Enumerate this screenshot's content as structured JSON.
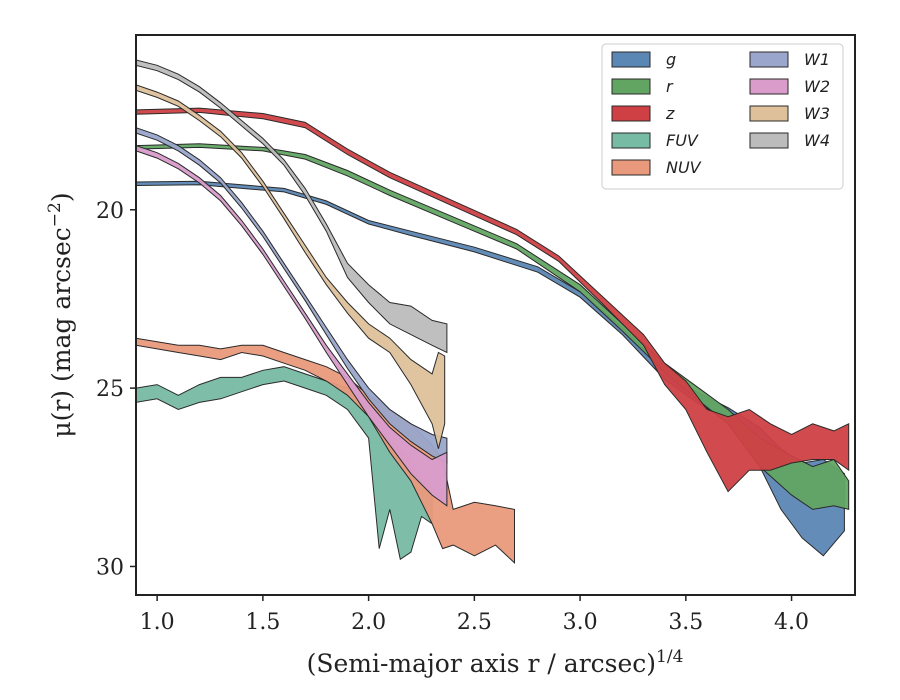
{
  "chart_data": {
    "type": "area",
    "xlabel": "(Semi-major axis r / arcsec)",
    "xlabel_sup": "1/4",
    "ylabel": "μ(r) (mag arcsec",
    "ylabel_sup": "−2",
    "ylabel_tail": ")",
    "xlim": [
      0.9,
      4.3
    ],
    "ylim": [
      30.8,
      15.1
    ],
    "y_inverted": true,
    "grid": false,
    "legend_position": "top-right",
    "legend_columns": 2,
    "x_ticks": [
      1.0,
      1.5,
      2.0,
      2.5,
      3.0,
      3.5,
      4.0
    ],
    "x_tick_labels": [
      "1.0",
      "1.5",
      "2.0",
      "2.5",
      "3.0",
      "3.5",
      "4.0"
    ],
    "y_ticks": [
      20,
      25,
      30
    ],
    "y_tick_labels": [
      "20",
      "25",
      "30"
    ],
    "series": [
      {
        "name": "g",
        "color": "#5b87b4",
        "points": [
          [
            0.9,
            19.22,
            19.32
          ],
          [
            1.2,
            19.2,
            19.3
          ],
          [
            1.6,
            19.4,
            19.5
          ],
          [
            1.8,
            19.75,
            19.85
          ],
          [
            2.0,
            20.3,
            20.4
          ],
          [
            2.2,
            20.6,
            20.72
          ],
          [
            2.5,
            21.05,
            21.18
          ],
          [
            2.8,
            21.6,
            21.75
          ],
          [
            3.0,
            22.3,
            22.45
          ],
          [
            3.2,
            23.3,
            23.5
          ],
          [
            3.4,
            24.5,
            24.75
          ],
          [
            3.55,
            25.1,
            25.4
          ],
          [
            3.7,
            25.55,
            25.9
          ],
          [
            3.85,
            26.1,
            27.2
          ],
          [
            3.95,
            26.7,
            28.4
          ],
          [
            4.05,
            27.1,
            29.2
          ],
          [
            4.15,
            27.0,
            29.7
          ],
          [
            4.25,
            27.4,
            29.0
          ]
        ]
      },
      {
        "name": "r",
        "color": "#62a563",
        "points": [
          [
            0.9,
            18.2,
            18.3
          ],
          [
            1.2,
            18.15,
            18.25
          ],
          [
            1.5,
            18.25,
            18.35
          ],
          [
            1.7,
            18.45,
            18.58
          ],
          [
            1.9,
            18.9,
            19.05
          ],
          [
            2.1,
            19.45,
            19.6
          ],
          [
            2.4,
            20.2,
            20.35
          ],
          [
            2.7,
            20.95,
            21.1
          ],
          [
            3.0,
            22.1,
            22.3
          ],
          [
            3.2,
            23.2,
            23.4
          ],
          [
            3.4,
            24.3,
            24.55
          ],
          [
            3.55,
            24.95,
            25.3
          ],
          [
            3.7,
            25.6,
            26.0
          ],
          [
            3.85,
            26.4,
            27.2
          ],
          [
            4.0,
            26.9,
            28.0
          ],
          [
            4.1,
            27.2,
            28.4
          ],
          [
            4.2,
            27.0,
            28.3
          ],
          [
            4.27,
            27.6,
            28.4
          ]
        ]
      },
      {
        "name": "z",
        "color": "#cf4044",
        "points": [
          [
            0.9,
            17.2,
            17.32
          ],
          [
            1.2,
            17.15,
            17.27
          ],
          [
            1.5,
            17.3,
            17.45
          ],
          [
            1.7,
            17.55,
            17.7
          ],
          [
            1.9,
            18.3,
            18.45
          ],
          [
            2.1,
            18.95,
            19.1
          ],
          [
            2.4,
            19.75,
            19.9
          ],
          [
            2.7,
            20.55,
            20.7
          ],
          [
            2.9,
            21.3,
            21.45
          ],
          [
            3.1,
            22.4,
            22.6
          ],
          [
            3.3,
            23.5,
            23.8
          ],
          [
            3.4,
            24.3,
            24.9
          ],
          [
            3.5,
            24.8,
            25.6
          ],
          [
            3.6,
            25.6,
            26.8
          ],
          [
            3.7,
            25.8,
            27.9
          ],
          [
            3.8,
            25.6,
            27.3
          ],
          [
            3.9,
            26.0,
            27.3
          ],
          [
            4.0,
            26.3,
            27.1
          ],
          [
            4.1,
            26.0,
            27.0
          ],
          [
            4.2,
            26.2,
            27.0
          ],
          [
            4.27,
            26.0,
            27.3
          ]
        ]
      },
      {
        "name": "FUV",
        "color": "#77bba4",
        "points": [
          [
            0.9,
            25.0,
            25.4
          ],
          [
            1.0,
            24.9,
            25.3
          ],
          [
            1.1,
            25.2,
            25.6
          ],
          [
            1.2,
            24.9,
            25.4
          ],
          [
            1.3,
            24.7,
            25.3
          ],
          [
            1.4,
            24.7,
            25.1
          ],
          [
            1.5,
            24.5,
            24.9
          ],
          [
            1.6,
            24.4,
            24.8
          ],
          [
            1.7,
            24.6,
            25.0
          ],
          [
            1.8,
            24.8,
            25.2
          ],
          [
            1.9,
            25.0,
            25.6
          ],
          [
            2.0,
            25.5,
            26.4
          ],
          [
            2.05,
            26.2,
            29.5
          ],
          [
            2.1,
            26.4,
            28.4
          ],
          [
            2.15,
            26.7,
            29.8
          ],
          [
            2.2,
            27.0,
            29.6
          ],
          [
            2.25,
            27.6,
            28.6
          ],
          [
            2.3,
            27.7,
            28.8
          ]
        ]
      },
      {
        "name": "NUV",
        "color": "#e99a7c",
        "points": [
          [
            0.9,
            23.6,
            23.8
          ],
          [
            1.0,
            23.7,
            23.9
          ],
          [
            1.1,
            23.8,
            24.0
          ],
          [
            1.2,
            23.8,
            24.1
          ],
          [
            1.3,
            23.9,
            24.2
          ],
          [
            1.4,
            23.8,
            24.0
          ],
          [
            1.5,
            23.8,
            24.1
          ],
          [
            1.6,
            24.0,
            24.3
          ],
          [
            1.7,
            24.2,
            24.5
          ],
          [
            1.8,
            24.4,
            24.8
          ],
          [
            1.9,
            24.7,
            25.2
          ],
          [
            2.0,
            25.2,
            25.8
          ],
          [
            2.1,
            25.6,
            26.8
          ],
          [
            2.2,
            26.0,
            27.6
          ],
          [
            2.3,
            26.6,
            28.8
          ],
          [
            2.35,
            27.0,
            29.5
          ],
          [
            2.4,
            28.4,
            29.4
          ],
          [
            2.5,
            28.2,
            29.7
          ],
          [
            2.6,
            28.3,
            29.4
          ],
          [
            2.69,
            28.4,
            29.9
          ]
        ]
      },
      {
        "name": "W1",
        "color": "#9aa6cb",
        "points": [
          [
            0.9,
            17.7,
            17.85
          ],
          [
            1.0,
            17.9,
            18.05
          ],
          [
            1.1,
            18.2,
            18.35
          ],
          [
            1.2,
            18.6,
            18.75
          ],
          [
            1.3,
            19.1,
            19.25
          ],
          [
            1.4,
            19.8,
            19.95
          ],
          [
            1.5,
            20.6,
            20.75
          ],
          [
            1.6,
            21.5,
            21.65
          ],
          [
            1.7,
            22.4,
            22.55
          ],
          [
            1.8,
            23.3,
            23.5
          ],
          [
            1.9,
            24.2,
            24.45
          ],
          [
            2.0,
            25.0,
            25.3
          ],
          [
            2.1,
            25.6,
            26.0
          ],
          [
            2.2,
            26.0,
            26.5
          ],
          [
            2.3,
            26.3,
            26.9
          ],
          [
            2.37,
            26.4,
            27.1
          ]
        ]
      },
      {
        "name": "W2",
        "color": "#d99ccb",
        "points": [
          [
            0.9,
            18.2,
            18.35
          ],
          [
            1.0,
            18.4,
            18.55
          ],
          [
            1.1,
            18.7,
            18.85
          ],
          [
            1.2,
            19.1,
            19.25
          ],
          [
            1.3,
            19.6,
            19.75
          ],
          [
            1.4,
            20.3,
            20.45
          ],
          [
            1.5,
            21.1,
            21.25
          ],
          [
            1.6,
            22.0,
            22.15
          ],
          [
            1.7,
            22.9,
            23.05
          ],
          [
            1.8,
            23.8,
            24.0
          ],
          [
            1.9,
            24.6,
            24.9
          ],
          [
            2.0,
            25.4,
            25.8
          ],
          [
            2.1,
            26.1,
            26.6
          ],
          [
            2.2,
            26.6,
            27.4
          ],
          [
            2.3,
            27.0,
            28.0
          ],
          [
            2.37,
            26.8,
            28.3
          ]
        ]
      },
      {
        "name": "W3",
        "color": "#dec19b",
        "points": [
          [
            0.9,
            16.5,
            16.65
          ],
          [
            1.0,
            16.7,
            16.85
          ],
          [
            1.1,
            16.95,
            17.1
          ],
          [
            1.2,
            17.35,
            17.5
          ],
          [
            1.3,
            17.8,
            17.95
          ],
          [
            1.4,
            18.4,
            18.55
          ],
          [
            1.5,
            19.2,
            19.35
          ],
          [
            1.6,
            20.1,
            20.25
          ],
          [
            1.7,
            21.0,
            21.2
          ],
          [
            1.8,
            21.9,
            22.1
          ],
          [
            1.9,
            22.6,
            22.9
          ],
          [
            2.0,
            23.2,
            23.6
          ],
          [
            2.1,
            23.6,
            24.0
          ],
          [
            2.2,
            24.2,
            24.9
          ],
          [
            2.3,
            24.6,
            26.0
          ],
          [
            2.33,
            24.0,
            26.7
          ],
          [
            2.36,
            24.1,
            26.0
          ]
        ]
      },
      {
        "name": "W4",
        "color": "#bcbcbc",
        "points": [
          [
            0.9,
            15.8,
            15.95
          ],
          [
            1.0,
            15.95,
            16.1
          ],
          [
            1.1,
            16.2,
            16.35
          ],
          [
            1.2,
            16.55,
            16.7
          ],
          [
            1.3,
            17.0,
            17.15
          ],
          [
            1.4,
            17.5,
            17.65
          ],
          [
            1.5,
            18.0,
            18.15
          ],
          [
            1.6,
            18.6,
            18.75
          ],
          [
            1.7,
            19.4,
            19.6
          ],
          [
            1.8,
            20.4,
            20.6
          ],
          [
            1.9,
            21.5,
            21.9
          ],
          [
            2.0,
            22.1,
            22.6
          ],
          [
            2.1,
            22.6,
            23.2
          ],
          [
            2.2,
            22.7,
            23.5
          ],
          [
            2.3,
            23.1,
            23.8
          ],
          [
            2.37,
            23.2,
            24.0
          ]
        ]
      }
    ]
  }
}
